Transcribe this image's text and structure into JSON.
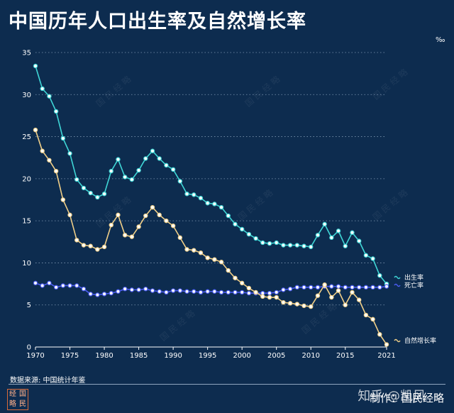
{
  "title": "中国历年人口出生率及自然增长率",
  "unit": "‰",
  "source": "数据来源: 中国统计年鉴",
  "credit": "制作：国民经略",
  "watermark_text": "知乎 @凯风",
  "logo_chars": [
    "经",
    "国",
    "略",
    "民"
  ],
  "chart_data": {
    "type": "line",
    "xlabel": "",
    "ylabel": "",
    "xlim": [
      1970,
      2021
    ],
    "ylim": [
      0,
      35
    ],
    "x_ticks": [
      1970,
      1975,
      1980,
      1985,
      1990,
      1995,
      2000,
      2005,
      2010,
      2015,
      2021
    ],
    "y_ticks": [
      0,
      5,
      10,
      15,
      20,
      25,
      30,
      35
    ],
    "grid": "horizontal-dotted",
    "x": [
      1970,
      1971,
      1972,
      1973,
      1974,
      1975,
      1976,
      1977,
      1978,
      1979,
      1980,
      1981,
      1982,
      1983,
      1984,
      1985,
      1986,
      1987,
      1988,
      1989,
      1990,
      1991,
      1992,
      1993,
      1994,
      1995,
      1996,
      1997,
      1998,
      1999,
      2000,
      2001,
      2002,
      2003,
      2004,
      2005,
      2006,
      2007,
      2008,
      2009,
      2010,
      2011,
      2012,
      2013,
      2014,
      2015,
      2016,
      2017,
      2018,
      2019,
      2020,
      2021
    ],
    "series": [
      {
        "name": "出生率",
        "color": "#3fd6d6",
        "values": [
          33.4,
          30.7,
          29.8,
          28.0,
          24.8,
          23.0,
          19.9,
          18.9,
          18.3,
          17.8,
          18.2,
          20.9,
          22.3,
          20.2,
          19.9,
          21.0,
          22.4,
          23.3,
          22.4,
          21.6,
          21.1,
          19.7,
          18.2,
          18.1,
          17.7,
          17.1,
          17.0,
          16.6,
          15.6,
          14.6,
          14.0,
          13.4,
          12.9,
          12.4,
          12.3,
          12.4,
          12.1,
          12.1,
          12.1,
          12.0,
          11.9,
          13.3,
          14.6,
          13.0,
          13.8,
          12.0,
          13.6,
          12.6,
          10.9,
          10.5,
          8.5,
          7.5
        ]
      },
      {
        "name": "死亡率",
        "color": "#4a5cf0",
        "values": [
          7.6,
          7.3,
          7.6,
          7.1,
          7.3,
          7.3,
          7.3,
          6.9,
          6.3,
          6.2,
          6.3,
          6.4,
          6.6,
          6.9,
          6.8,
          6.8,
          6.9,
          6.7,
          6.6,
          6.5,
          6.7,
          6.7,
          6.6,
          6.6,
          6.5,
          6.6,
          6.6,
          6.5,
          6.5,
          6.5,
          6.5,
          6.4,
          6.4,
          6.4,
          6.4,
          6.5,
          6.8,
          6.9,
          7.1,
          7.1,
          7.1,
          7.1,
          7.2,
          7.2,
          7.2,
          7.1,
          7.1,
          7.1,
          7.1,
          7.1,
          7.1,
          7.2
        ]
      },
      {
        "name": "自然增长率",
        "color": "#f0cf88",
        "values": [
          25.8,
          23.3,
          22.2,
          20.9,
          17.5,
          15.7,
          12.7,
          12.1,
          12.0,
          11.6,
          11.9,
          14.5,
          15.7,
          13.3,
          13.1,
          14.3,
          15.6,
          16.6,
          15.7,
          15.0,
          14.4,
          13.0,
          11.6,
          11.5,
          11.2,
          10.6,
          10.4,
          10.1,
          9.1,
          8.2,
          7.6,
          7.0,
          6.5,
          6.0,
          5.9,
          5.9,
          5.3,
          5.2,
          5.1,
          4.9,
          4.8,
          6.1,
          7.4,
          5.9,
          6.7,
          5.0,
          6.5,
          5.6,
          3.8,
          3.3,
          1.5,
          0.3
        ]
      }
    ],
    "legend": "right-end-labels"
  }
}
